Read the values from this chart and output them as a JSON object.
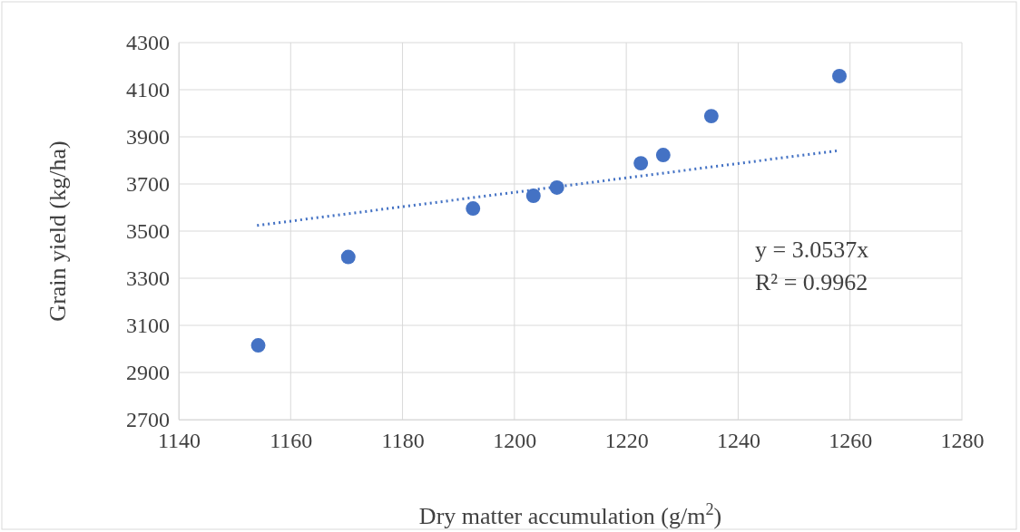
{
  "chart_data": {
    "type": "scatter",
    "xlabel": "Dry matter accumulation (g/m$^{2}$)",
    "ylabel": "Grain yield (kg/ha)",
    "xlim": [
      1140,
      1280
    ],
    "xticks": [
      1140,
      1160,
      1180,
      1200,
      1220,
      1240,
      1260,
      1280
    ],
    "ylim": [
      2700,
      4300
    ],
    "yticks": [
      2700,
      2900,
      3100,
      3300,
      3500,
      3700,
      3900,
      4100,
      4300
    ],
    "grid": true,
    "series": [
      {
        "type": "scatter",
        "color": "#4472c4",
        "marker": "circle",
        "x": [
          1154.2,
          1170.3,
          1192.6,
          1203.4,
          1207.6,
          1222.6,
          1226.6,
          1235.2,
          1258.1
        ],
        "values": [
          3015,
          3390,
          3596,
          3650,
          3685,
          3788,
          3823,
          3988,
          4158
        ]
      },
      {
        "type": "line",
        "color": "#4472c4",
        "marker": "none",
        "line_style": "dotted",
        "x": [
          1154,
          1258
        ],
        "values": [
          3524,
          3842
        ]
      }
    ],
    "annotations": [
      "y = 3.0537x",
      "R² = 0.9962"
    ]
  }
}
